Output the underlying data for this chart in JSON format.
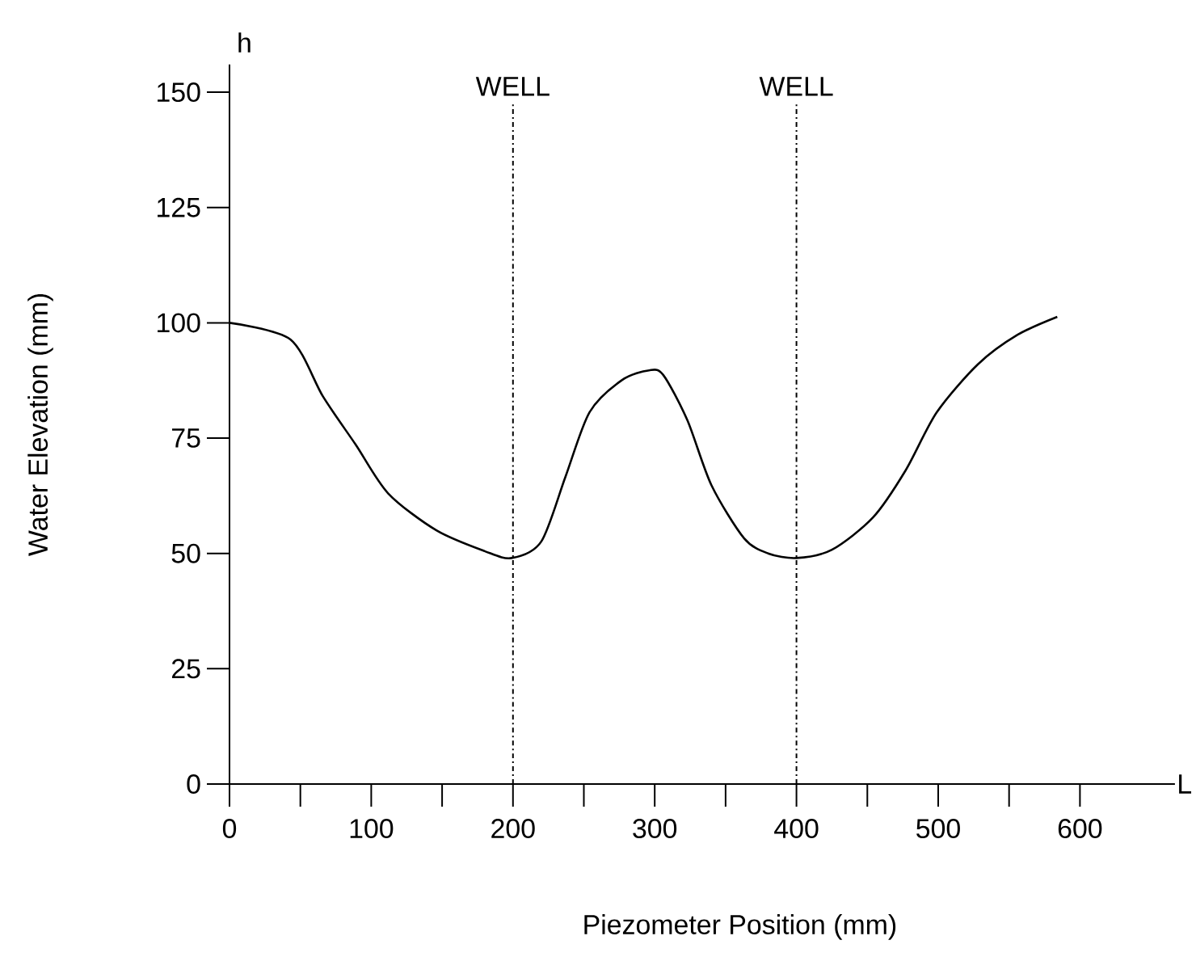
{
  "chart_data": {
    "type": "line",
    "xlabel": "Piezometer Position (mm)",
    "ylabel": "Water Elevation (mm)",
    "x": [
      0,
      43,
      66,
      89,
      112,
      146,
      180,
      199,
      220,
      237,
      254,
      277,
      296,
      306,
      323,
      340,
      363,
      380,
      400,
      425,
      454,
      477,
      499,
      528,
      556,
      584
    ],
    "values": [
      100,
      96.4,
      84,
      73.6,
      63,
      55,
      50.5,
      49,
      52.6,
      66.6,
      80.6,
      87.6,
      89.7,
      88.7,
      78.9,
      64.8,
      53.3,
      50,
      49,
      50.8,
      57.8,
      68,
      80.6,
      91,
      97.4,
      101.3
    ],
    "color": "#000000",
    "line_style": "solid",
    "marker": "none",
    "grid": false,
    "xlim": [
      -15,
      667
    ],
    "ylim": [
      0,
      156
    ],
    "xticks": [
      0,
      {
        "value": 50,
        "label": null
      },
      100,
      {
        "value": 150,
        "label": null
      },
      200,
      {
        "value": 250,
        "label": null
      },
      300,
      {
        "value": 350,
        "label": null
      },
      400,
      {
        "value": 450,
        "label": null
      },
      500,
      {
        "value": 550,
        "label": null
      },
      600
    ],
    "yticks": [
      0,
      25,
      50,
      75,
      100,
      125,
      150
    ],
    "ref_lines": [
      {
        "axis": "x",
        "value": 200,
        "label": "WELL",
        "line_style": "dashdot",
        "color": "#000000"
      },
      {
        "axis": "x",
        "value": 400,
        "label": "WELL",
        "line_style": "dashdot",
        "color": "#000000"
      }
    ],
    "annotations": [
      "h",
      "L"
    ]
  }
}
